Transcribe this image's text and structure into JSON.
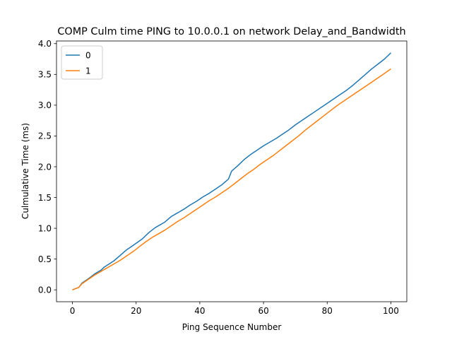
{
  "chart_data": {
    "type": "line",
    "title": "COMP Culm time PING to 10.0.0.1 on network Delay_and_Bandwidth",
    "xlabel": "Ping Sequence Number",
    "ylabel": "Culmulative Time (ms)",
    "xlim": [
      -5,
      105
    ],
    "ylim": [
      -0.193,
      4.043
    ],
    "x_ticks": [
      0,
      20,
      40,
      60,
      80,
      100
    ],
    "x_tick_labels": [
      "0",
      "20",
      "40",
      "60",
      "80",
      "100"
    ],
    "y_ticks": [
      0.0,
      0.5,
      1.0,
      1.5,
      2.0,
      2.5,
      3.0,
      3.5,
      4.0
    ],
    "y_tick_labels": [
      "0.0",
      "0.5",
      "1.0",
      "1.5",
      "2.0",
      "2.5",
      "3.0",
      "3.5",
      "4.0"
    ],
    "grid": false,
    "legend_position": "upper-left",
    "series": [
      {
        "name": "0",
        "color": "#1f77b4",
        "x": [
          0,
          2,
          3,
          5,
          7,
          9,
          10,
          13,
          15,
          17,
          19,
          22,
          24,
          26,
          29,
          31,
          33,
          35,
          37,
          39,
          41,
          43,
          45,
          47,
          49,
          50,
          52,
          54,
          56,
          58,
          60,
          62,
          64,
          66,
          68,
          70,
          72,
          74,
          76,
          78,
          80,
          82,
          84,
          86,
          88,
          90,
          92,
          94,
          96,
          98,
          100
        ],
        "values": [
          0.0,
          0.04,
          0.11,
          0.18,
          0.26,
          0.32,
          0.37,
          0.47,
          0.56,
          0.65,
          0.72,
          0.83,
          0.93,
          1.01,
          1.1,
          1.19,
          1.25,
          1.31,
          1.38,
          1.44,
          1.51,
          1.57,
          1.64,
          1.71,
          1.8,
          1.93,
          2.02,
          2.12,
          2.2,
          2.27,
          2.34,
          2.4,
          2.46,
          2.53,
          2.6,
          2.68,
          2.75,
          2.82,
          2.89,
          2.96,
          3.03,
          3.1,
          3.17,
          3.24,
          3.32,
          3.41,
          3.5,
          3.59,
          3.67,
          3.75,
          3.85
        ]
      },
      {
        "name": "1",
        "color": "#ff7f0e",
        "x": [
          0,
          2,
          3,
          5,
          7,
          9,
          11,
          13,
          15,
          17,
          19,
          21,
          23,
          25,
          27,
          29,
          31,
          33,
          35,
          37,
          39,
          41,
          43,
          45,
          47,
          49,
          51,
          53,
          55,
          57,
          59,
          61,
          63,
          65,
          67,
          69,
          71,
          73,
          75,
          77,
          79,
          81,
          83,
          85,
          87,
          89,
          91,
          93,
          95,
          97,
          100
        ],
        "values": [
          0.0,
          0.04,
          0.1,
          0.17,
          0.24,
          0.3,
          0.36,
          0.42,
          0.48,
          0.55,
          0.62,
          0.7,
          0.78,
          0.85,
          0.91,
          0.97,
          1.04,
          1.11,
          1.17,
          1.24,
          1.31,
          1.38,
          1.45,
          1.51,
          1.58,
          1.65,
          1.73,
          1.81,
          1.89,
          1.96,
          2.04,
          2.11,
          2.18,
          2.26,
          2.34,
          2.42,
          2.5,
          2.59,
          2.67,
          2.75,
          2.83,
          2.91,
          2.99,
          3.06,
          3.13,
          3.2,
          3.27,
          3.34,
          3.41,
          3.48,
          3.59
        ]
      }
    ]
  }
}
